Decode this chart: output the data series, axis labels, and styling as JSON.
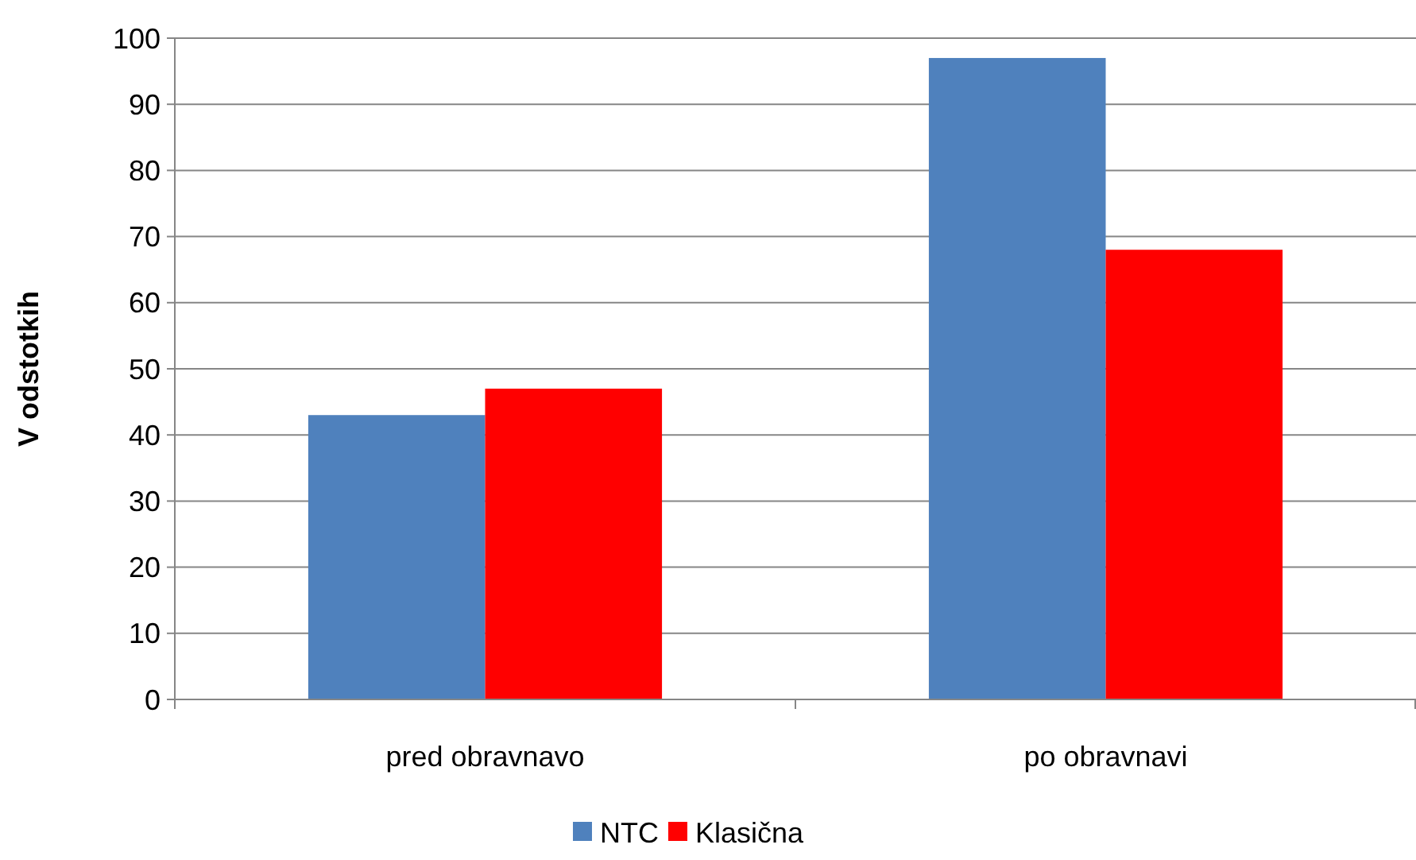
{
  "chart_data": {
    "type": "bar",
    "ylabel": "V odstotkih",
    "categories": [
      "pred obravnavo",
      "po obravnavi"
    ],
    "series": [
      {
        "name": "NTC",
        "color": "#4f81bd",
        "values": [
          43,
          97
        ]
      },
      {
        "name": "Klasična",
        "color": "#ff0000",
        "values": [
          47,
          68
        ]
      }
    ],
    "ylim": [
      0,
      100
    ],
    "yticks": [
      0,
      10,
      20,
      30,
      40,
      50,
      60,
      70,
      80,
      90,
      100
    ],
    "grid": "y",
    "legend": "bottom"
  }
}
